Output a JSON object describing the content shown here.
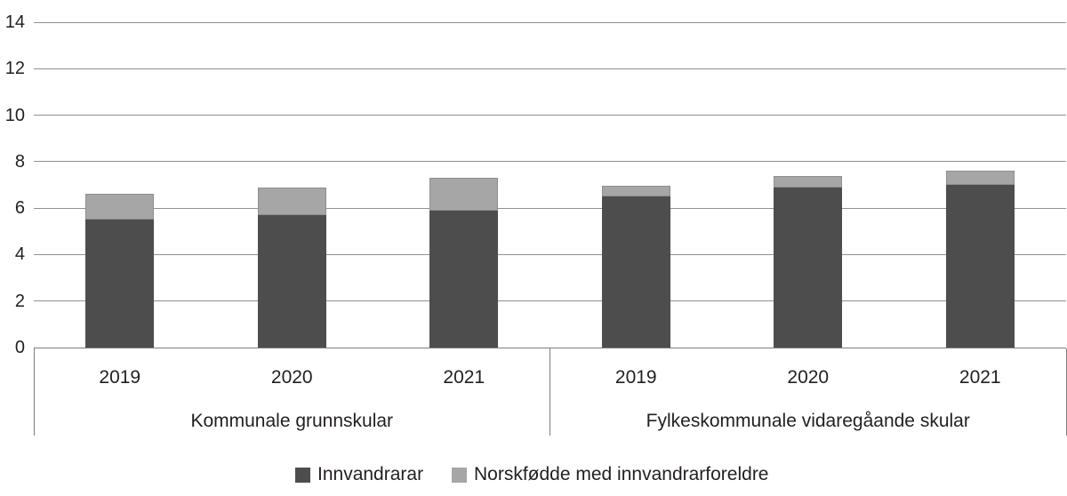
{
  "chart_data": {
    "type": "bar",
    "stacked": true,
    "title": "",
    "xlabel": "",
    "ylabel": "",
    "ylim": [
      0,
      14
    ],
    "yticks": [
      0,
      2,
      4,
      6,
      8,
      10,
      12,
      14
    ],
    "grid": true,
    "legend_position": "bottom",
    "groups": [
      {
        "label": "Kommunale grunnskular",
        "categories": [
          "2019",
          "2020",
          "2021"
        ]
      },
      {
        "label": "Fylkeskommunale vidaregåande skular",
        "categories": [
          "2019",
          "2020",
          "2021"
        ]
      }
    ],
    "series": [
      {
        "name": "Innvandrarar",
        "color": "#4d4d4d",
        "values": [
          5.5,
          5.7,
          5.9,
          6.5,
          6.9,
          7.0
        ]
      },
      {
        "name": "Norskfødde med innvandrarforeldre",
        "color": "#a6a6a6",
        "values": [
          1.1,
          1.2,
          1.4,
          0.45,
          0.5,
          0.6
        ]
      }
    ]
  },
  "colors": {
    "gridline": "#919191",
    "axis_line": "#7d7d7d",
    "text": "#231f20",
    "background": "#ffffff",
    "light_bar_border": "#8f8f8f"
  }
}
